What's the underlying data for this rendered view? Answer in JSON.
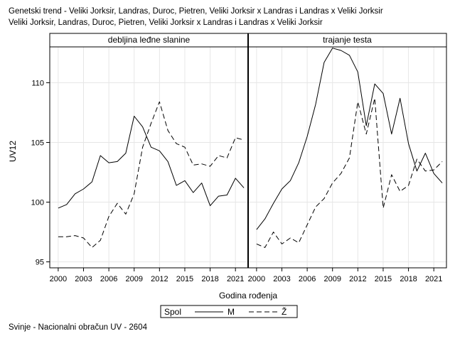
{
  "title_line1": "Genetski trend - Veliki Jorksir, Landras, Duroc, Pietren, Veliki Jorksir x Landras i Landras x Veliki Jorksir",
  "title_line2": "Veliki Jorksir, Landras, Duroc, Pietren, Veliki Jorksir x Landras i Landras x Veliki Jorksir",
  "footnote": "Svinje - Nacionalni obračun UV - 2604",
  "chart_data": {
    "type": "line",
    "xlabel": "Godina rođenja",
    "ylabel": "UV12",
    "ylim": [
      94.5,
      113
    ],
    "yticks": [
      95,
      100,
      105,
      110
    ],
    "xlim": [
      1999,
      2022.5
    ],
    "xticks": [
      2000,
      2003,
      2006,
      2009,
      2012,
      2015,
      2018,
      2021
    ],
    "grid": true,
    "legend": {
      "title": "Spol",
      "position": "bottom-center",
      "entries": [
        {
          "name": "M",
          "style": "solid"
        },
        {
          "name": "Ž",
          "style": "dashed"
        }
      ]
    },
    "panels": [
      {
        "title": "debljina leđne slanine",
        "x": [
          2000,
          2001,
          2002,
          2003,
          2004,
          2005,
          2006,
          2007,
          2008,
          2009,
          2010,
          2011,
          2012,
          2013,
          2014,
          2015,
          2016,
          2017,
          2018,
          2019,
          2020,
          2021,
          2022
        ],
        "series": [
          {
            "name": "M",
            "values": [
              99.5,
              99.8,
              100.7,
              101.1,
              101.7,
              103.9,
              103.3,
              103.4,
              104.1,
              107.2,
              106.3,
              104.6,
              104.3,
              103.4,
              101.4,
              101.8,
              100.8,
              101.6,
              99.7,
              100.5,
              100.6,
              102.0,
              101.2
            ]
          },
          {
            "name": "Ž",
            "values": [
              97.1,
              97.1,
              97.2,
              97.0,
              96.2,
              96.8,
              98.8,
              99.9,
              99.0,
              100.7,
              104.6,
              106.6,
              108.4,
              106.0,
              104.9,
              104.6,
              103.1,
              103.2,
              103.0,
              103.9,
              103.7,
              105.4,
              105.2
            ]
          }
        ]
      },
      {
        "title": "trajanje testa",
        "x": [
          2000,
          2001,
          2002,
          2003,
          2004,
          2005,
          2006,
          2007,
          2008,
          2009,
          2010,
          2011,
          2012,
          2013,
          2014,
          2015,
          2016,
          2017,
          2018,
          2019,
          2020,
          2021,
          2022
        ],
        "series": [
          {
            "name": "M",
            "values": [
              97.7,
              98.6,
              99.9,
              101.1,
              101.8,
              103.3,
              105.5,
              108.2,
              111.7,
              112.9,
              112.7,
              112.3,
              110.9,
              106.4,
              109.9,
              109.1,
              105.7,
              108.7,
              104.9,
              102.6,
              104.1,
              102.4,
              101.6
            ]
          },
          {
            "name": "Ž",
            "values": [
              96.5,
              96.2,
              97.5,
              96.5,
              97.0,
              96.6,
              98.1,
              99.6,
              100.3,
              101.6,
              102.4,
              103.7,
              108.4,
              105.7,
              108.7,
              99.5,
              102.3,
              100.9,
              101.4,
              103.6,
              102.6,
              102.7,
              103.4
            ]
          }
        ]
      }
    ]
  }
}
